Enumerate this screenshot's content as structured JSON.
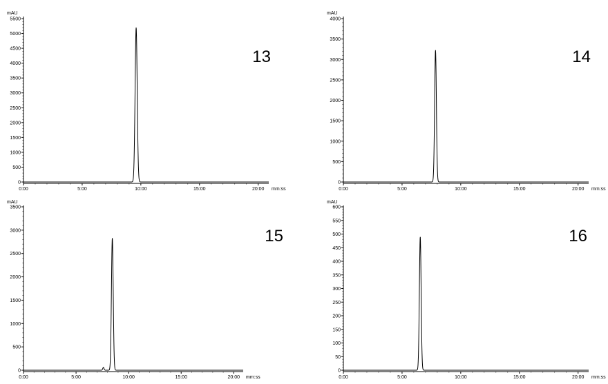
{
  "chart_data": [
    {
      "type": "line",
      "panel_label": "13",
      "ylabel": "mAU",
      "xlabel_unit": "mm:ss",
      "xlim_min": [
        0,
        20.9
      ],
      "ylim": [
        -60,
        5500
      ],
      "y_ticks": [
        0,
        500,
        1000,
        1500,
        2000,
        2500,
        3000,
        3500,
        4000,
        4500,
        5000,
        5500
      ],
      "x_ticks": [
        "0:00",
        "5:00",
        "10:00",
        "15:00",
        "20:00"
      ],
      "x_tick_values_min": [
        0,
        5,
        10,
        15,
        20
      ],
      "series": [
        {
          "peaks": [
            {
              "rt_min": 9.6,
              "height": 5200,
              "sigma_min": 0.09
            }
          ]
        }
      ]
    },
    {
      "type": "line",
      "panel_label": "14",
      "ylabel": "mAU",
      "xlabel_unit": "mm:ss",
      "xlim_min": [
        0,
        20.9
      ],
      "ylim": [
        -40,
        4000
      ],
      "y_ticks": [
        0,
        500,
        1000,
        1500,
        2000,
        2500,
        3000,
        3500,
        4000
      ],
      "x_ticks": [
        "0:00",
        "5:00",
        "10:00",
        "15:00",
        "20:00"
      ],
      "x_tick_values_min": [
        0,
        5,
        10,
        15,
        20
      ],
      "series": [
        {
          "peaks": [
            {
              "rt_min": 7.85,
              "height": 3230,
              "sigma_min": 0.075
            }
          ]
        }
      ]
    },
    {
      "type": "line",
      "panel_label": "15",
      "ylabel": "mAU",
      "xlabel_unit": "mm:ss",
      "xlim_min": [
        0,
        20.9
      ],
      "ylim": [
        -40,
        3500
      ],
      "y_ticks": [
        0,
        500,
        1000,
        1500,
        2000,
        2500,
        3000,
        3500
      ],
      "x_ticks": [
        "0:00",
        "5:00",
        "10:00",
        "15:00",
        "20:00"
      ],
      "x_tick_values_min": [
        0,
        5,
        10,
        15,
        20
      ],
      "series": [
        {
          "peaks": [
            {
              "rt_min": 8.45,
              "height": 2830,
              "sigma_min": 0.085
            },
            {
              "rt_min": 7.6,
              "height": 60,
              "sigma_min": 0.06
            }
          ]
        }
      ]
    },
    {
      "type": "line",
      "panel_label": "16",
      "ylabel": "mAU",
      "xlabel_unit": "mm:ss",
      "xlim_min": [
        0,
        20.9
      ],
      "ylim": [
        -8,
        600
      ],
      "y_ticks": [
        0,
        50,
        100,
        150,
        200,
        250,
        300,
        350,
        400,
        450,
        500,
        550,
        600
      ],
      "x_ticks": [
        "0:00",
        "5:00",
        "10:00",
        "15:00",
        "20:00"
      ],
      "x_tick_values_min": [
        0,
        5,
        10,
        15,
        20
      ],
      "series": [
        {
          "peaks": [
            {
              "rt_min": 6.55,
              "height": 490,
              "sigma_min": 0.075
            }
          ]
        }
      ]
    }
  ]
}
